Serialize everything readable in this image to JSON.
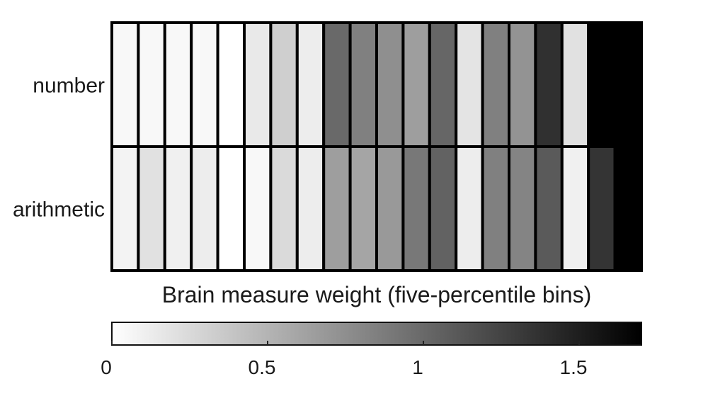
{
  "chart_data": {
    "type": "heatmap",
    "rows": [
      "number",
      "arithmetic"
    ],
    "xlabel": "Brain measure weight (five-percentile bins)",
    "values": [
      [
        0.05,
        0.05,
        0.05,
        0.05,
        0.0,
        0.15,
        0.32,
        0.12,
        1.0,
        0.85,
        0.75,
        0.65,
        1.02,
        0.18,
        0.85,
        0.72,
        1.38,
        0.2,
        1.7,
        1.7
      ],
      [
        0.08,
        0.2,
        0.1,
        0.12,
        0.0,
        0.05,
        0.25,
        0.12,
        0.65,
        0.6,
        0.68,
        0.9,
        1.05,
        0.12,
        0.85,
        0.82,
        1.1,
        0.1,
        1.35,
        1.7
      ]
    ],
    "colorbar": {
      "range": [
        0,
        1.7
      ],
      "ticks": [
        0,
        0.5,
        1,
        1.5
      ],
      "tick_labels": [
        "0",
        "0.5",
        "1",
        "1.5"
      ],
      "colormap": "white-to-black"
    }
  }
}
